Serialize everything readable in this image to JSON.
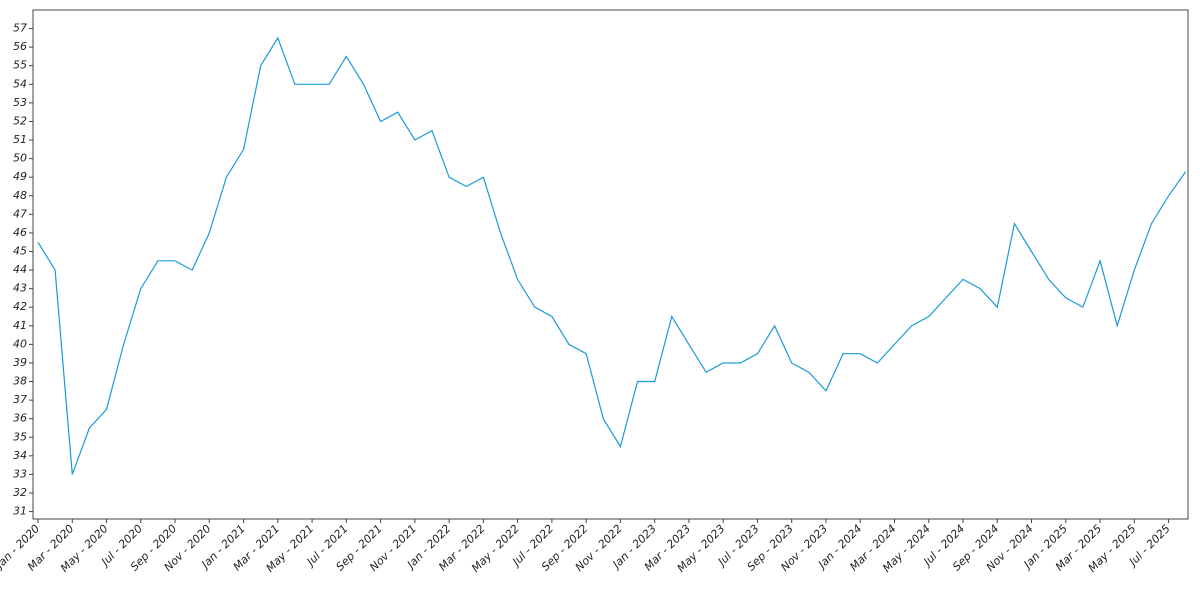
{
  "chart_data": {
    "type": "line",
    "x": [
      "2020-01",
      "2020-02",
      "2020-03",
      "2020-04",
      "2020-05",
      "2020-06",
      "2020-07",
      "2020-08",
      "2020-09",
      "2020-10",
      "2020-11",
      "2020-12",
      "2021-01",
      "2021-02",
      "2021-03",
      "2021-04",
      "2021-05",
      "2021-06",
      "2021-07",
      "2021-08",
      "2021-09",
      "2021-10",
      "2021-11",
      "2021-12",
      "2022-01",
      "2022-02",
      "2022-03",
      "2022-04",
      "2022-05",
      "2022-06",
      "2022-07",
      "2022-08",
      "2022-09",
      "2022-10",
      "2022-11",
      "2022-12",
      "2023-01",
      "2023-02",
      "2023-03",
      "2023-04",
      "2023-05",
      "2023-06",
      "2023-07",
      "2023-08",
      "2023-09",
      "2023-10",
      "2023-11",
      "2023-12",
      "2024-01",
      "2024-02",
      "2024-03",
      "2024-04",
      "2024-05",
      "2024-06",
      "2024-07",
      "2024-08",
      "2024-09",
      "2024-10",
      "2024-11",
      "2024-12",
      "2025-01",
      "2025-02",
      "2025-03",
      "2025-04",
      "2025-05",
      "2025-06",
      "2025-07",
      "2025-08"
    ],
    "series": [
      {
        "color": "#1a9ad9",
        "values": [
          45.5,
          44,
          33,
          35.5,
          36.5,
          40,
          43,
          44.5,
          44.5,
          44,
          46,
          49,
          50.5,
          55,
          56.5,
          54,
          54,
          54,
          55.5,
          54,
          52,
          52.5,
          51,
          51.5,
          49,
          48.5,
          49,
          46,
          43.5,
          42,
          41.5,
          40,
          39.5,
          36,
          34.5,
          38,
          38,
          41.5,
          40,
          38.5,
          39,
          39,
          39.5,
          41,
          39,
          38.5,
          37.5,
          39.5,
          39.5,
          39,
          40,
          41,
          41.5,
          42.5,
          43.5,
          43,
          42,
          46.5,
          45,
          43.5,
          42.5,
          42,
          44.5,
          41,
          44,
          46.5,
          48,
          49.3
        ]
      }
    ],
    "ylim": [
      30.6,
      58
    ],
    "yticks": [
      31,
      32,
      33,
      34,
      35,
      36,
      37,
      38,
      39,
      40,
      41,
      42,
      43,
      44,
      45,
      46,
      47,
      48,
      49,
      50,
      51,
      52,
      53,
      54,
      55,
      56,
      57
    ],
    "xticks": [
      {
        "value": "2020-01",
        "label": "Jan - 2020"
      },
      {
        "value": "2020-03",
        "label": "Mar - 2020"
      },
      {
        "value": "2020-05",
        "label": "May - 2020"
      },
      {
        "value": "2020-07",
        "label": "Jul - 2020"
      },
      {
        "value": "2020-09",
        "label": "Sep - 2020"
      },
      {
        "value": "2020-11",
        "label": "Nov - 2020"
      },
      {
        "value": "2021-01",
        "label": "Jan - 2021"
      },
      {
        "value": "2021-03",
        "label": "Mar - 2021"
      },
      {
        "value": "2021-05",
        "label": "May - 2021"
      },
      {
        "value": "2021-07",
        "label": "Jul - 2021"
      },
      {
        "value": "2021-09",
        "label": "Sep - 2021"
      },
      {
        "value": "2021-11",
        "label": "Nov - 2021"
      },
      {
        "value": "2022-01",
        "label": "Jan - 2022"
      },
      {
        "value": "2022-03",
        "label": "Mar - 2022"
      },
      {
        "value": "2022-05",
        "label": "May - 2022"
      },
      {
        "value": "2022-07",
        "label": "Jul - 2022"
      },
      {
        "value": "2022-09",
        "label": "Sep - 2022"
      },
      {
        "value": "2022-11",
        "label": "Nov - 2022"
      },
      {
        "value": "2023-01",
        "label": "Jan - 2023"
      },
      {
        "value": "2023-03",
        "label": "Mar - 2023"
      },
      {
        "value": "2023-05",
        "label": "May - 2023"
      },
      {
        "value": "2023-07",
        "label": "Jul - 2023"
      },
      {
        "value": "2023-09",
        "label": "Sep - 2023"
      },
      {
        "value": "2023-11",
        "label": "Nov - 2023"
      },
      {
        "value": "2024-01",
        "label": "Jan - 2024"
      },
      {
        "value": "2024-03",
        "label": "Mar - 2024"
      },
      {
        "value": "2024-05",
        "label": "May - 2024"
      },
      {
        "value": "2024-07",
        "label": "Jul - 2024"
      },
      {
        "value": "2024-09",
        "label": "Sep - 2024"
      },
      {
        "value": "2024-11",
        "label": "Nov - 2024"
      },
      {
        "value": "2025-01",
        "label": "Jan - 2025"
      },
      {
        "value": "2025-03",
        "label": "Mar - 2025"
      },
      {
        "value": "2025-05",
        "label": "May - 2025"
      },
      {
        "value": "2025-07",
        "label": "Jul - 2025"
      }
    ]
  }
}
